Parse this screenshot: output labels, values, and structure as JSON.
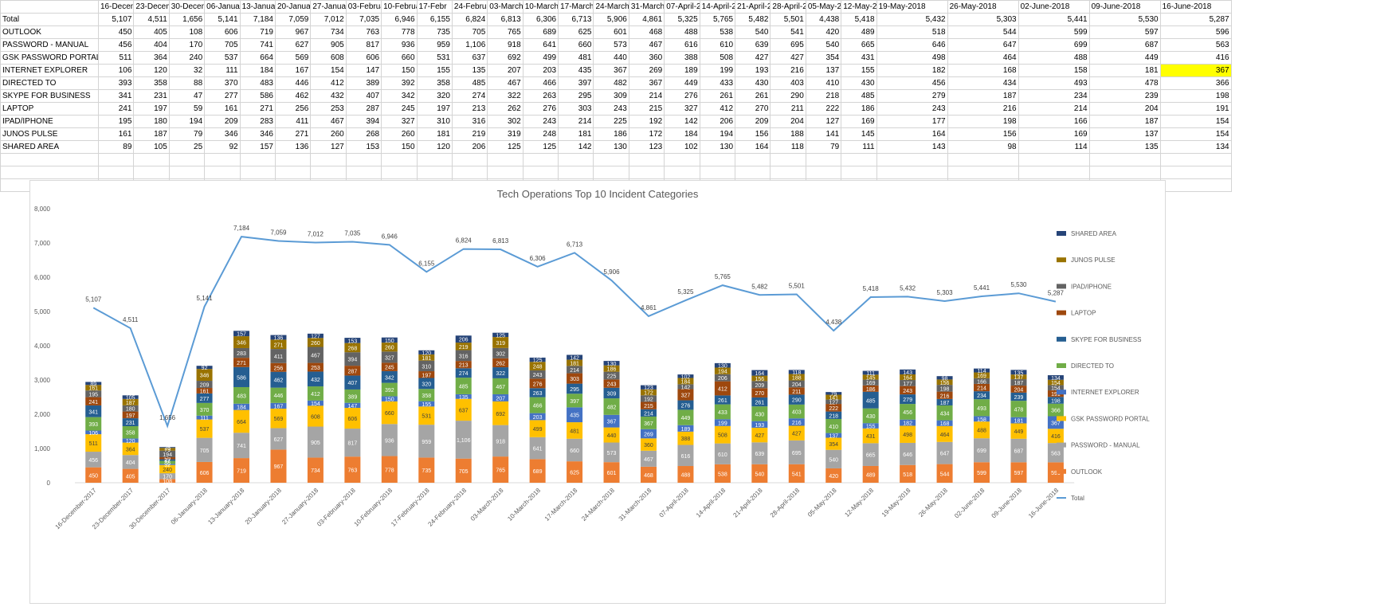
{
  "table": {
    "dates": [
      "16-December-2017",
      "23-December-2017",
      "30-December-2017",
      "06-January-2018",
      "13-January-2018",
      "20-January-2018",
      "27-January-2018",
      "03-February-2018",
      "10-February-2018",
      "17-February-2018",
      "24-February-2018",
      "03-March-2018",
      "10-March-2018",
      "17-March-2018",
      "24-March-2018",
      "31-March-2018",
      "07-April-2018",
      "14-April-2018",
      "21-April-2018",
      "28-April-2018",
      "05-May-2018",
      "12-May-2018",
      "19-May-2018",
      "26-May-2018",
      "02-June-2018",
      "09-June-2018",
      "16-June-2018"
    ],
    "header_display": [
      "16-Decem",
      "23-Decem",
      "30-Decem",
      "06-Januar",
      "13-Januar",
      "20-Januar",
      "27-Januar",
      "03-Februa",
      "10-Februa",
      "17-Febr",
      "24-Februa",
      "03-March-",
      "10-March-",
      "17-March-",
      "24-March-",
      "31-March-",
      "07-April-2",
      "14-April-2",
      "21-April-2",
      "28-April-2",
      "05-May-20",
      "12-May-20",
      "19-May-2018",
      "26-May-2018",
      "02-June-2018",
      "09-June-2018",
      "16-June-2018"
    ],
    "rows": [
      {
        "label": "Total",
        "values": [
          "5,107",
          "4,511",
          "1,656",
          "5,141",
          "7,184",
          "7,059",
          "7,012",
          "7,035",
          "6,946",
          "6,155",
          "6,824",
          "6,813",
          "6,306",
          "6,713",
          "5,906",
          "4,861",
          "5,325",
          "5,765",
          "5,482",
          "5,501",
          "4,438",
          "5,418",
          "5,432",
          "5,303",
          "5,441",
          "5,530",
          "5,287"
        ]
      },
      {
        "label": "OUTLOOK",
        "values": [
          "450",
          "405",
          "108",
          "606",
          "719",
          "967",
          "734",
          "763",
          "778",
          "735",
          "705",
          "765",
          "689",
          "625",
          "601",
          "468",
          "488",
          "538",
          "540",
          "541",
          "420",
          "489",
          "518",
          "544",
          "599",
          "597",
          "596"
        ]
      },
      {
        "label": "PASSWORD - MANUAL",
        "values": [
          "456",
          "404",
          "170",
          "705",
          "741",
          "627",
          "905",
          "817",
          "936",
          "959",
          "1,106",
          "918",
          "641",
          "660",
          "573",
          "467",
          "616",
          "610",
          "639",
          "695",
          "540",
          "665",
          "646",
          "647",
          "699",
          "687",
          "563"
        ]
      },
      {
        "label": "GSK PASSWORD PORTAL",
        "values": [
          "511",
          "364",
          "240",
          "537",
          "664",
          "569",
          "608",
          "606",
          "660",
          "531",
          "637",
          "692",
          "499",
          "481",
          "440",
          "360",
          "388",
          "508",
          "427",
          "427",
          "354",
          "431",
          "498",
          "464",
          "488",
          "449",
          "416"
        ]
      },
      {
        "label": "INTERNET EXPLORER",
        "values": [
          "106",
          "120",
          "32",
          "111",
          "184",
          "167",
          "154",
          "147",
          "150",
          "155",
          "135",
          "207",
          "203",
          "435",
          "367",
          "269",
          "189",
          "199",
          "193",
          "216",
          "137",
          "155",
          "182",
          "168",
          "158",
          "181",
          "367"
        ]
      },
      {
        "label": "DIRECTED TO",
        "values": [
          "393",
          "358",
          "88",
          "370",
          "483",
          "446",
          "412",
          "389",
          "392",
          "358",
          "485",
          "467",
          "466",
          "397",
          "482",
          "367",
          "449",
          "433",
          "430",
          "403",
          "410",
          "430",
          "456",
          "434",
          "493",
          "478",
          "366"
        ]
      },
      {
        "label": "SKYPE FOR BUSINESS",
        "values": [
          "341",
          "231",
          "47",
          "277",
          "586",
          "462",
          "432",
          "407",
          "342",
          "320",
          "274",
          "322",
          "263",
          "295",
          "309",
          "214",
          "276",
          "261",
          "261",
          "290",
          "218",
          "485",
          "279",
          "187",
          "234",
          "239",
          "198"
        ]
      },
      {
        "label": "LAPTOP",
        "values": [
          "241",
          "197",
          "59",
          "161",
          "271",
          "256",
          "253",
          "287",
          "245",
          "197",
          "213",
          "262",
          "276",
          "303",
          "243",
          "215",
          "327",
          "412",
          "270",
          "211",
          "222",
          "186",
          "243",
          "216",
          "214",
          "204",
          "191"
        ]
      },
      {
        "label": "IPAD/IPHONE",
        "values": [
          "195",
          "180",
          "194",
          "209",
          "283",
          "411",
          "467",
          "394",
          "327",
          "310",
          "316",
          "302",
          "243",
          "214",
          "225",
          "192",
          "142",
          "206",
          "209",
          "204",
          "127",
          "169",
          "177",
          "198",
          "166",
          "187",
          "154"
        ]
      },
      {
        "label": "JUNOS PULSE",
        "values": [
          "161",
          "187",
          "79",
          "346",
          "346",
          "271",
          "260",
          "268",
          "260",
          "181",
          "219",
          "319",
          "248",
          "181",
          "186",
          "172",
          "184",
          "194",
          "156",
          "188",
          "141",
          "145",
          "164",
          "156",
          "169",
          "137",
          "154"
        ]
      },
      {
        "label": "SHARED AREA",
        "values": [
          "89",
          "105",
          "25",
          "92",
          "157",
          "136",
          "127",
          "153",
          "150",
          "120",
          "206",
          "125",
          "125",
          "142",
          "130",
          "123",
          "102",
          "130",
          "164",
          "118",
          "79",
          "111",
          "143",
          "98",
          "114",
          "135",
          "134"
        ]
      }
    ],
    "highlight_color": "#ffff00"
  },
  "chart_data": {
    "type": "bar",
    "title": "Tech Operations Top 10 Incident Categories",
    "categories": [
      "16-December-2017",
      "23-December-2017",
      "30-December-2017",
      "06-January-2018",
      "13-January-2018",
      "20-January-2018",
      "27-January-2018",
      "03-February-2018",
      "10-February-2018",
      "17-February-2018",
      "24-February-2018",
      "03-March-2018",
      "10-March-2018",
      "17-March-2018",
      "24-March-2018",
      "31-March-2018",
      "07-April-2018",
      "14-April-2018",
      "21-April-2018",
      "28-April-2018",
      "05-May-2018",
      "12-May-2018",
      "19-May-2018",
      "26-May-2018",
      "02-June-2018",
      "09-June-2018",
      "16-June-2018"
    ],
    "ylim": [
      0,
      8000
    ],
    "yticks": [
      "0",
      "1,000",
      "2,000",
      "3,000",
      "4,000",
      "5,000",
      "6,000",
      "7,000",
      "8,000"
    ],
    "legend_position": "right",
    "series": [
      {
        "name": "OUTLOOK",
        "color": "#ED7D31",
        "values": [
          450,
          405,
          108,
          606,
          719,
          967,
          734,
          763,
          778,
          735,
          705,
          765,
          689,
          625,
          601,
          468,
          488,
          538,
          540,
          541,
          420,
          489,
          518,
          544,
          599,
          597,
          596
        ]
      },
      {
        "name": "PASSWORD - MANUAL",
        "color": "#A5A5A5",
        "values": [
          456,
          404,
          170,
          705,
          741,
          627,
          905,
          817,
          936,
          959,
          1106,
          918,
          641,
          660,
          573,
          467,
          616,
          610,
          639,
          695,
          540,
          665,
          646,
          647,
          699,
          687,
          563
        ]
      },
      {
        "name": "GSK PASSWORD PORTAL",
        "color": "#FFC000",
        "values": [
          511,
          364,
          240,
          537,
          664,
          569,
          608,
          606,
          660,
          531,
          637,
          692,
          499,
          481,
          440,
          360,
          388,
          508,
          427,
          427,
          354,
          431,
          498,
          464,
          488,
          449,
          416
        ]
      },
      {
        "name": "INTERNET EXPLORER",
        "color": "#4472C4",
        "values": [
          106,
          120,
          32,
          111,
          184,
          167,
          154,
          147,
          150,
          155,
          135,
          207,
          203,
          435,
          367,
          269,
          189,
          199,
          193,
          216,
          137,
          155,
          182,
          168,
          158,
          181,
          367
        ]
      },
      {
        "name": "DIRECTED TO",
        "color": "#70AD47",
        "values": [
          393,
          358,
          88,
          370,
          483,
          446,
          412,
          389,
          392,
          358,
          485,
          467,
          466,
          397,
          482,
          367,
          449,
          433,
          430,
          403,
          410,
          430,
          456,
          434,
          493,
          478,
          366
        ]
      },
      {
        "name": "SKYPE FOR BUSINESS",
        "color": "#255E91",
        "values": [
          341,
          231,
          47,
          277,
          586,
          462,
          432,
          407,
          342,
          320,
          274,
          322,
          263,
          295,
          309,
          214,
          276,
          261,
          261,
          290,
          218,
          485,
          279,
          187,
          234,
          239,
          198
        ]
      },
      {
        "name": "LAPTOP",
        "color": "#9E480E",
        "values": [
          241,
          197,
          59,
          161,
          271,
          256,
          253,
          287,
          245,
          197,
          213,
          262,
          276,
          303,
          243,
          215,
          327,
          412,
          270,
          211,
          222,
          186,
          243,
          216,
          214,
          204,
          191
        ]
      },
      {
        "name": "IPAD/IPHONE",
        "color": "#636363",
        "values": [
          195,
          180,
          194,
          209,
          283,
          411,
          467,
          394,
          327,
          310,
          316,
          302,
          243,
          214,
          225,
          192,
          142,
          206,
          209,
          204,
          127,
          169,
          177,
          198,
          166,
          187,
          154
        ]
      },
      {
        "name": "JUNOS PULSE",
        "color": "#997300",
        "values": [
          161,
          187,
          79,
          346,
          346,
          271,
          260,
          268,
          260,
          181,
          219,
          319,
          248,
          181,
          186,
          172,
          184,
          194,
          156,
          188,
          141,
          145,
          164,
          156,
          169,
          137,
          154
        ]
      },
      {
        "name": "SHARED AREA",
        "color": "#264478",
        "values": [
          89,
          105,
          25,
          92,
          157,
          136,
          127,
          153,
          150,
          120,
          206,
          125,
          125,
          142,
          130,
          123,
          102,
          130,
          164,
          118,
          79,
          111,
          143,
          98,
          114,
          135,
          134
        ]
      }
    ],
    "line": {
      "name": "Total",
      "type": "line",
      "color": "#5B9BD5",
      "values": [
        5107,
        4511,
        1656,
        5141,
        7184,
        7059,
        7012,
        7035,
        6946,
        6155,
        6824,
        6813,
        6306,
        6713,
        5906,
        4861,
        5325,
        5765,
        5482,
        5501,
        4438,
        5418,
        5432,
        5303,
        5441,
        5530,
        5287
      ]
    }
  }
}
